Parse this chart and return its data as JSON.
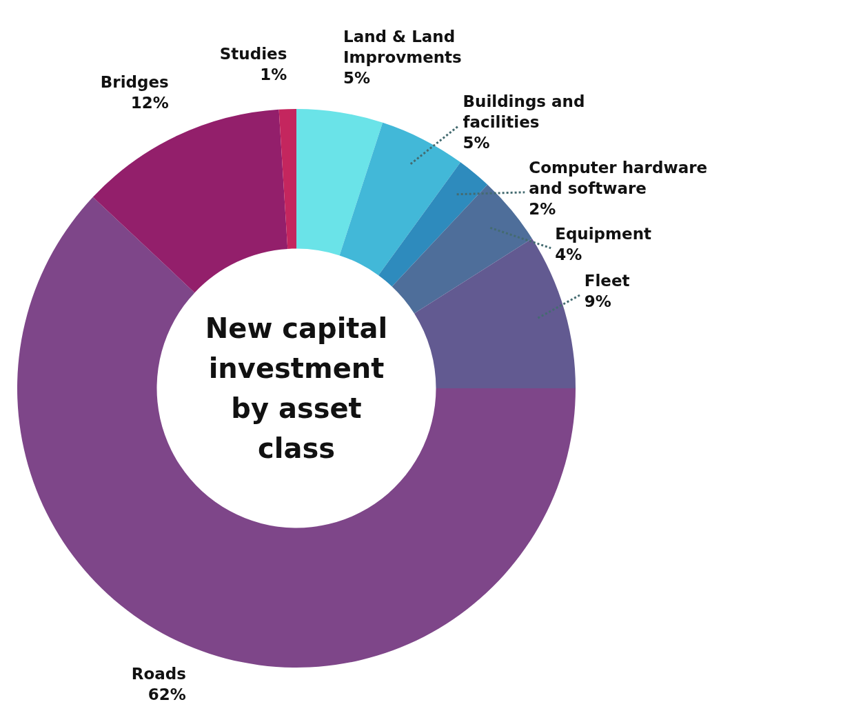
{
  "chart_data": {
    "type": "donut",
    "title": "New capital investment by asset class",
    "categories": [
      "Land & Land Improvments",
      "Buildings and facilities",
      "Computer hardware and software",
      "Equipment",
      "Fleet",
      "Roads",
      "Bridges",
      "Studies"
    ],
    "values": [
      5,
      5,
      2,
      4,
      9,
      62,
      12,
      1
    ],
    "value_labels": [
      "5%",
      "5%",
      "2%",
      "4%",
      "9%",
      "62%",
      "12%",
      "1%"
    ],
    "colors": [
      "#6ae3e8",
      "#42b8d8",
      "#2e8bbd",
      "#4e6e9a",
      "#625a91",
      "#7e4689",
      "#931f6b",
      "#c4265e"
    ],
    "legend": false
  }
}
